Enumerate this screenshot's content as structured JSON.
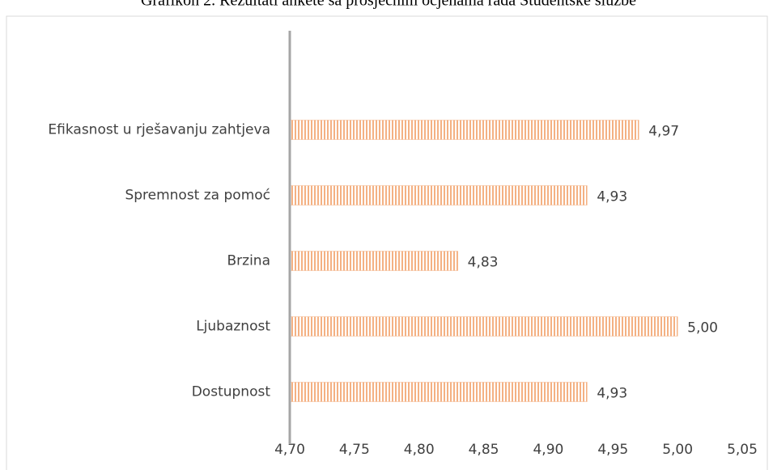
{
  "chart_data": {
    "type": "bar",
    "orientation": "horizontal",
    "title": "Grafikon 2. Rezultati ankete sa prosječnim ocjenama rada Studentske službe",
    "categories": [
      "Efikasnost u rješavanju zahtjeva",
      "Spremnost za pomoć",
      "Brzina",
      "Ljubaznost",
      "Dostupnost"
    ],
    "values": [
      4.97,
      4.93,
      4.83,
      5.0,
      4.93
    ],
    "value_labels": [
      "4,97",
      "4,93",
      "4,83",
      "5,00",
      "4,93"
    ],
    "color": "#f4b183",
    "xlim": [
      4.7,
      5.05
    ],
    "xticks": [
      {
        "value": 4.7,
        "label": "4,70"
      },
      {
        "value": 4.75,
        "label": "4,75"
      },
      {
        "value": 4.8,
        "label": "4,80"
      },
      {
        "value": 4.85,
        "label": "4,85"
      },
      {
        "value": 4.9,
        "label": "4,90"
      },
      {
        "value": 4.95,
        "label": "4,95"
      },
      {
        "value": 5.0,
        "label": "5,00"
      },
      {
        "value": 5.05,
        "label": "5,05"
      }
    ]
  }
}
